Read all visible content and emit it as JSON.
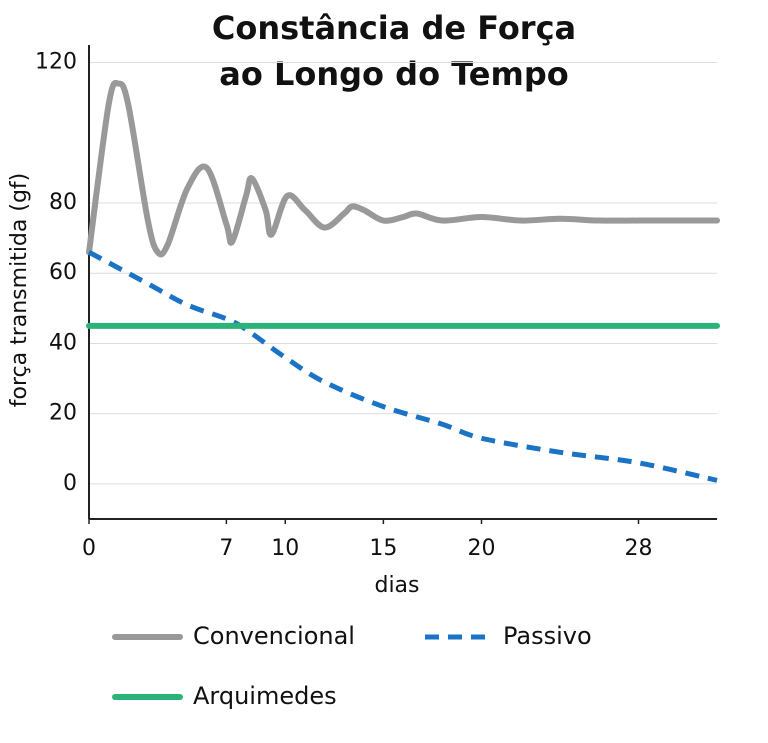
{
  "chart_data": {
    "type": "line",
    "title": [
      "Constância de Força",
      "ao Longo do Tempo"
    ],
    "x_label": "dias",
    "y_label": "força transmitida (gf)",
    "xlim": [
      0,
      32
    ],
    "xticks": [
      0,
      7,
      10,
      15,
      20,
      28
    ],
    "ylim": [
      -10,
      125
    ],
    "yticks": [
      0,
      20,
      40,
      60,
      80,
      120
    ],
    "grid": true,
    "legend": "bottom",
    "series": [
      {
        "name": "Convencional",
        "color": "#999999",
        "style": "solid",
        "x": [
          0,
          1,
          1.5,
          2,
          3,
          3.5,
          4,
          5,
          6,
          7,
          7.3,
          8,
          8.3,
          9,
          9.3,
          10.1,
          11,
          12,
          13,
          13.4,
          14,
          15,
          16,
          16.7,
          18,
          20,
          22,
          24,
          26,
          28,
          30,
          32
        ],
        "values": [
          66,
          108,
          114,
          108,
          75,
          66,
          68,
          84,
          90,
          74,
          69,
          82,
          87,
          78,
          71,
          82,
          78,
          73,
          77,
          79,
          78,
          75,
          76,
          77,
          75,
          76,
          75,
          75.5,
          75,
          75,
          75,
          75
        ]
      },
      {
        "name": "Passivo",
        "color": "#1a73c4",
        "style": "dashed",
        "x": [
          0,
          3,
          5,
          7,
          8,
          10,
          12,
          15,
          18,
          20,
          24,
          28,
          32
        ],
        "values": [
          66,
          57,
          51,
          47,
          44,
          36,
          29,
          22,
          17,
          13,
          9,
          6,
          1
        ]
      },
      {
        "name": "Arquimedes",
        "color": "#2cb37a",
        "style": "solid",
        "x": [
          0,
          32
        ],
        "values": [
          45,
          45
        ]
      }
    ]
  }
}
